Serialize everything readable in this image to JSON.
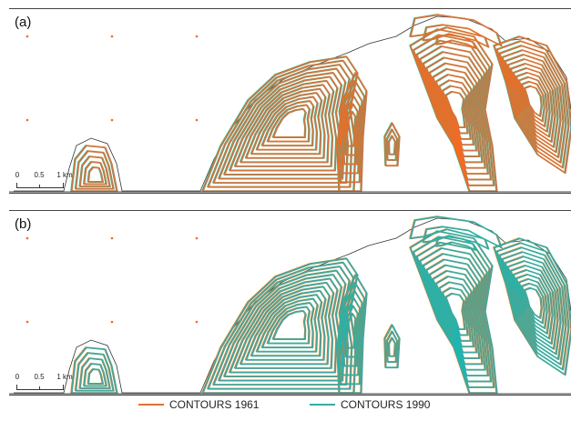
{
  "colors": {
    "c1961": "#f26b21",
    "c1990": "#1fb5b0",
    "coast": "#333333",
    "frame": "#444444"
  },
  "panels": [
    {
      "id": "a",
      "label": "(a)",
      "top_layer": "1961"
    },
    {
      "id": "b",
      "label": "(b)",
      "top_layer": "1990"
    }
  ],
  "scalebar": {
    "labels": [
      "0",
      "0.5",
      "1 km"
    ]
  },
  "legend": [
    {
      "label": "CONTOURS 1961",
      "color_key": "c1961"
    },
    {
      "label": "CONTOURS 1990",
      "color_key": "c1990"
    }
  ]
}
